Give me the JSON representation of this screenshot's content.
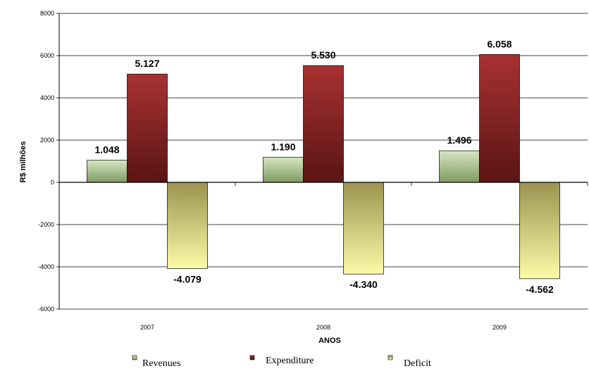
{
  "chart_data": {
    "type": "bar",
    "categories": [
      "2007",
      "2008",
      "2009"
    ],
    "series": [
      {
        "name": "Revenues",
        "values": [
          1048,
          1190,
          1496
        ],
        "labels": [
          "1.048",
          "1.190",
          "1.496"
        ],
        "color": "#a9c08e"
      },
      {
        "name": "Expenditure",
        "values": [
          5127,
          5530,
          6058
        ],
        "labels": [
          "5.127",
          "5.530",
          "6.058"
        ],
        "color": "#8b2222"
      },
      {
        "name": "Deficit",
        "values": [
          -4079,
          -4340,
          -4562
        ],
        "labels": [
          "-4.079",
          "-4.340",
          "-4.562"
        ],
        "color": "#e0df8c"
      }
    ],
    "xlabel": "ANOS",
    "ylabel": "R$ milhões",
    "ylim": [
      -6000,
      8000
    ],
    "yticks": [
      8000,
      6000,
      4000,
      2000,
      0,
      -2000,
      -4000,
      -6000
    ],
    "grid": true,
    "legend_position": "bottom"
  }
}
